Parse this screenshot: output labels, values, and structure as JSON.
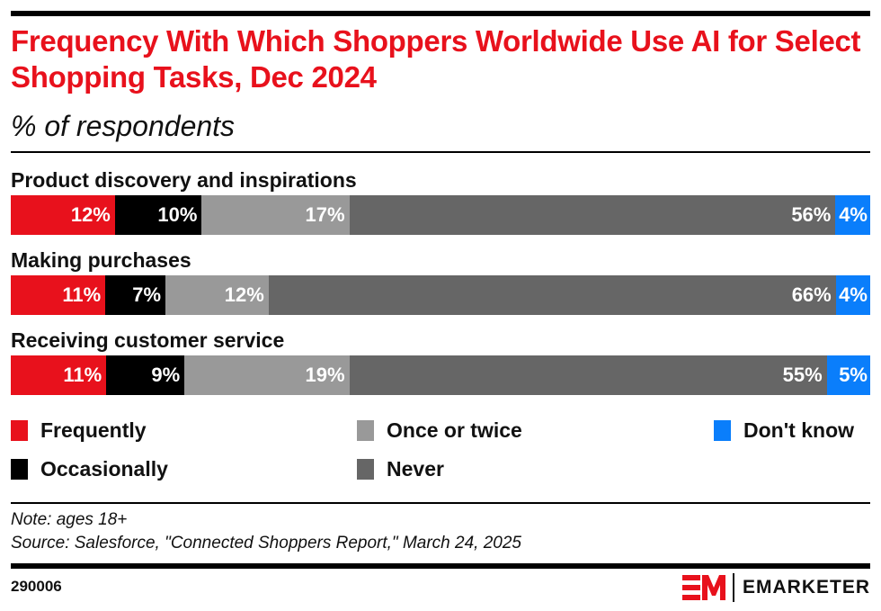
{
  "header": {
    "title": "Frequency With Which Shoppers Worldwide Use AI for Select Shopping Tasks, Dec 2024",
    "subtitle": "% of respondents"
  },
  "chart_data": {
    "type": "bar",
    "orientation": "horizontal",
    "stacked": true,
    "title": "Frequency With Which Shoppers Worldwide Use AI for Select Shopping Tasks, Dec 2024",
    "subtitle": "% of respondents",
    "xlabel": "",
    "ylabel": "",
    "xlim": [
      0,
      100
    ],
    "grid": false,
    "legend_position": "bottom",
    "categories": [
      "Product discovery and inspirations",
      "Making purchases",
      "Receiving customer service"
    ],
    "series": [
      {
        "name": "Frequently",
        "color": "#e8111c",
        "values": [
          12,
          11,
          11
        ]
      },
      {
        "name": "Occasionally",
        "color": "#000000",
        "values": [
          10,
          7,
          9
        ]
      },
      {
        "name": "Once or twice",
        "color": "#999999",
        "values": [
          17,
          12,
          19
        ]
      },
      {
        "name": "Never",
        "color": "#666666",
        "values": [
          56,
          66,
          55
        ]
      },
      {
        "name": "Don't know",
        "color": "#0a7efb",
        "values": [
          4,
          4,
          5
        ]
      }
    ],
    "value_suffix": "%"
  },
  "legend": [
    {
      "label": "Frequently",
      "color": "#e8111c"
    },
    {
      "label": "Occasionally",
      "color": "#000000"
    },
    {
      "label": "Once or twice",
      "color": "#999999"
    },
    {
      "label": "Never",
      "color": "#666666"
    },
    {
      "label": "Don't know",
      "color": "#0a7efb"
    }
  ],
  "footer": {
    "note": "Note: ages 18+",
    "source": "Source: Salesforce, \"Connected Shoppers Report,\" March 24, 2025",
    "chart_id": "290006",
    "brand": "EMARKETER",
    "brand_color": "#e8111c"
  }
}
